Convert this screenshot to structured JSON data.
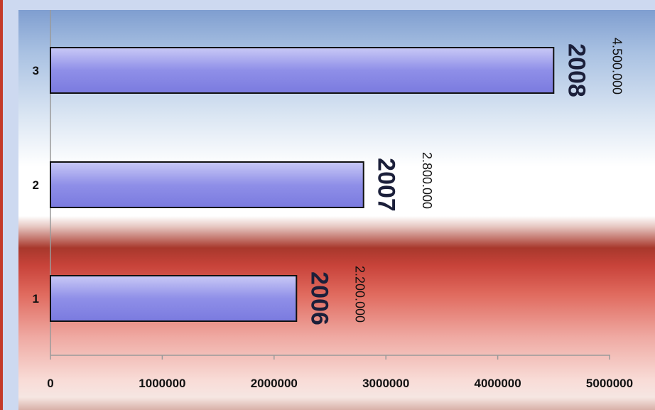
{
  "chart_data": {
    "type": "bar",
    "orientation": "horizontal",
    "categories": [
      "1",
      "2",
      "3"
    ],
    "values": [
      2200000,
      2800000,
      4500000
    ],
    "value_labels": [
      "2.200.000",
      "2.800.000",
      "4.500.000"
    ],
    "year_labels": [
      "2006",
      "2007",
      "2008"
    ],
    "x_ticks": [
      "0",
      "1000000",
      "2000000",
      "3000000",
      "4000000",
      "5000000"
    ],
    "xlim": [
      0,
      5000000
    ],
    "grid": false,
    "legend": "none",
    "colors": {
      "bar_top": "#c9c9f6",
      "bar_mid": "#8f8fe8",
      "bar_bottom": "#7a7adf",
      "bar_stroke": "#111111",
      "axis": "#9a9a9a"
    }
  }
}
